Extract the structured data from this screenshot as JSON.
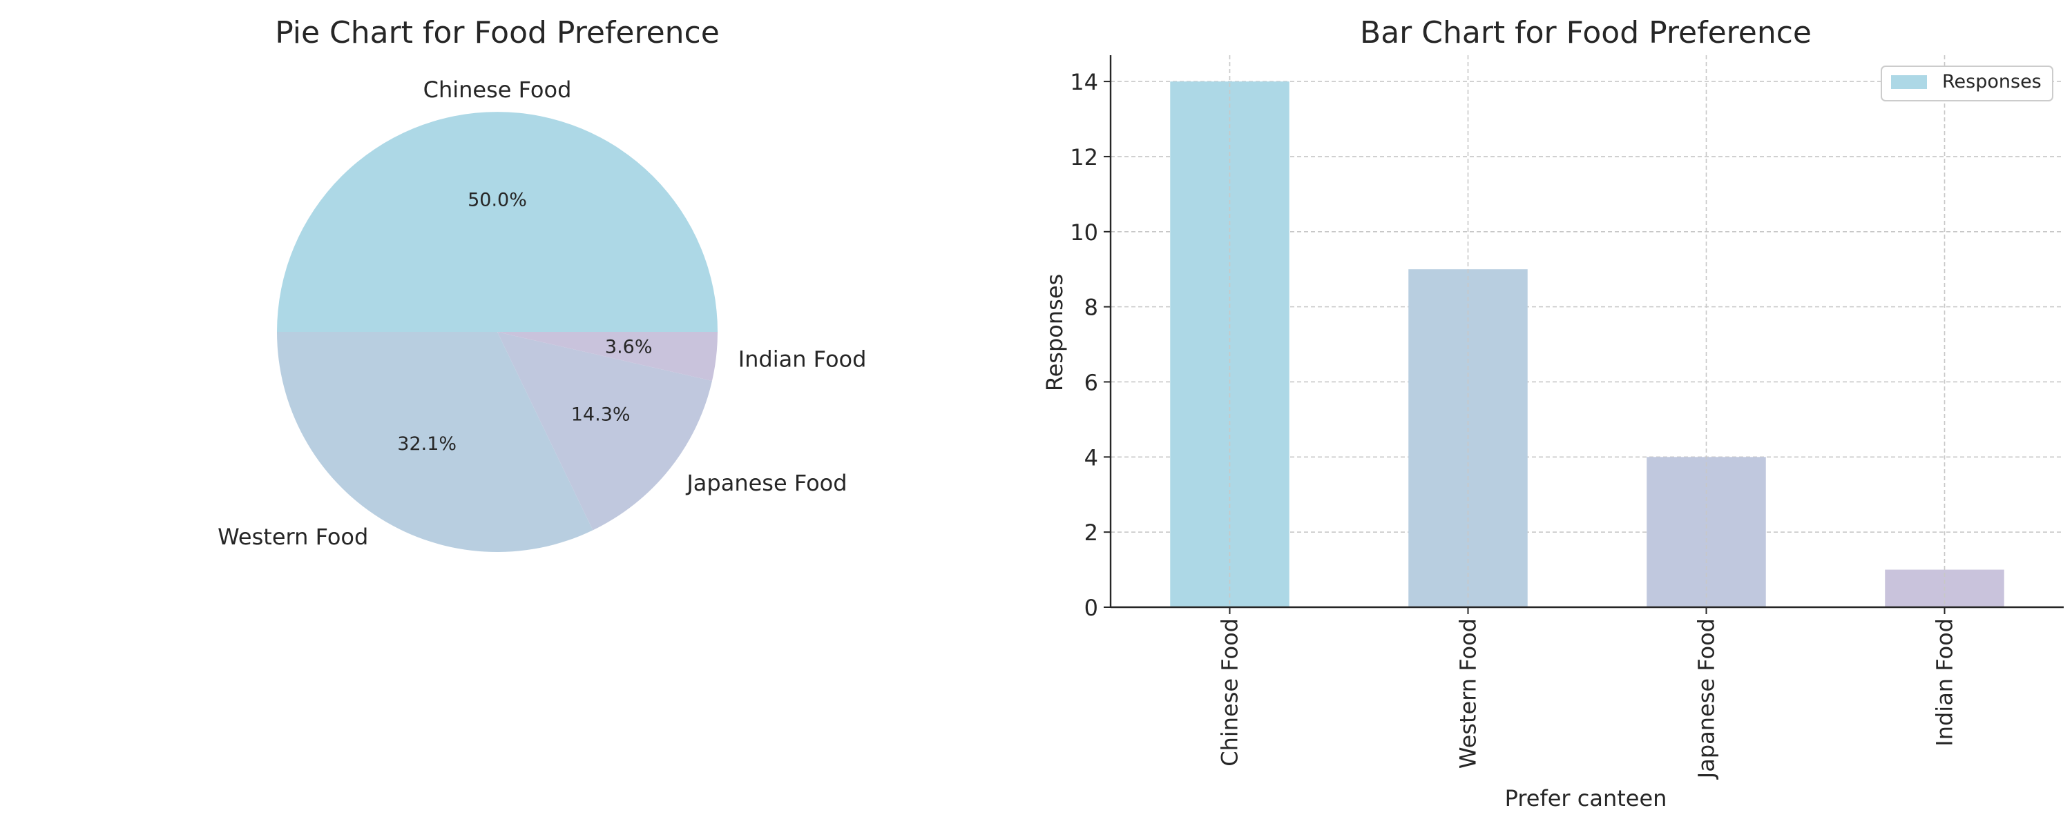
{
  "chart_data": [
    {
      "type": "pie",
      "title": "Pie Chart for Food Preference",
      "slices": [
        {
          "label": "Chinese Food",
          "value": 14,
          "percent_label": "50.0%",
          "color": "#add8e6"
        },
        {
          "label": "Western Food",
          "value": 9,
          "percent_label": "32.1%",
          "color": "#b8cee0"
        },
        {
          "label": "Japanese Food",
          "value": 4,
          "percent_label": "14.3%",
          "color": "#c0c8de"
        },
        {
          "label": "Indian Food",
          "value": 1,
          "percent_label": "3.6%",
          "color": "#c9c3dc"
        }
      ]
    },
    {
      "type": "bar",
      "title": "Bar Chart for Food Preference",
      "categories": [
        "Chinese Food",
        "Western Food",
        "Japanese Food",
        "Indian Food"
      ],
      "series": [
        {
          "name": "Responses",
          "values": [
            14,
            9,
            4,
            1
          ]
        }
      ],
      "colors": [
        "#add8e6",
        "#b8cee0",
        "#c0c8de",
        "#c9c3dc"
      ],
      "xlabel": "Prefer canteen",
      "ylabel": "Responses",
      "ylim": [
        0,
        14.7
      ],
      "yticks": [
        0,
        2,
        4,
        6,
        8,
        10,
        12,
        14
      ],
      "grid": true,
      "legend": "top-right"
    }
  ]
}
